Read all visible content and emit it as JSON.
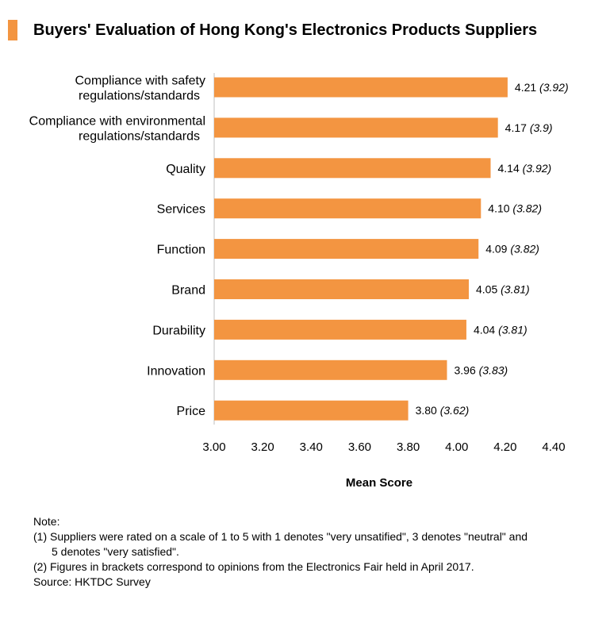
{
  "title": "Buyers' Evaluation of Hong Kong's Electronics Products Suppliers",
  "accent_color": "#f39541",
  "chart_data": {
    "type": "bar",
    "orientation": "horizontal",
    "categories": [
      [
        "Compliance with safety",
        "regulations/standards"
      ],
      [
        "Compliance with environmental",
        "regulations/standards"
      ],
      [
        "Quality"
      ],
      [
        "Services"
      ],
      [
        "Function"
      ],
      [
        "Brand"
      ],
      [
        "Durability"
      ],
      [
        "Innovation"
      ],
      [
        "Price"
      ]
    ],
    "values": [
      4.21,
      4.17,
      4.14,
      4.1,
      4.09,
      4.05,
      4.04,
      3.96,
      3.8
    ],
    "value_labels": [
      "4.21",
      "4.17",
      "4.14",
      "4.10",
      "4.09",
      "4.05",
      "4.04",
      "3.96",
      "3.80"
    ],
    "bracket_labels": [
      "(3.92)",
      "(3.9)",
      "(3.92)",
      "(3.82)",
      "(3.82)",
      "(3.81)",
      "(3.81)",
      "(3.83)",
      "(3.62)"
    ],
    "xlim": [
      3.0,
      4.4
    ],
    "xticks": [
      "3.00",
      "3.20",
      "3.40",
      "3.60",
      "3.80",
      "4.00",
      "4.20",
      "4.40"
    ],
    "xlabel": "Mean Score",
    "ylabel": "",
    "bar_color": "#f39541",
    "grid": false,
    "legend": "none"
  },
  "notes": {
    "heading": "Note:",
    "note1_line1": "(1) Suppliers were rated on a scale of 1 to 5 with 1 denotes \"very unsatified\", 3 denotes \"neutral\" and",
    "note1_line2": "5 denotes \"very satisfied\".",
    "note2": "(2) Figures in brackets correspond to opinions from the Electronics Fair held in April 2017.",
    "source": "Source: HKTDC Survey"
  }
}
